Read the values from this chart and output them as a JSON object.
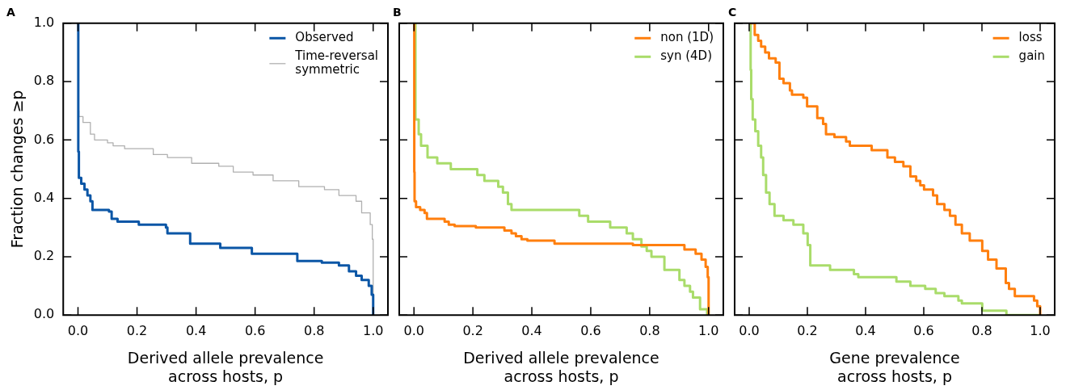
{
  "chart_data": [
    {
      "type": "step",
      "title": "A",
      "xlabel": "Derived allele prevalence\nacross hosts, p",
      "ylabel": "Fraction changes ≥p",
      "legend": "top right",
      "xlim": [
        -0.05,
        1.05
      ],
      "ylim": [
        0,
        1
      ],
      "xticks": [
        {
          "value": 0,
          "label": "0.0"
        },
        {
          "value": 0.2,
          "label": "0.2"
        },
        {
          "value": 0.4,
          "label": "0.4"
        },
        {
          "value": 0.6,
          "label": "0.6"
        },
        {
          "value": 0.8,
          "label": "0.8"
        },
        {
          "value": 1,
          "label": "1.0"
        }
      ],
      "yticks": [
        {
          "value": 0,
          "label": "0.0"
        },
        {
          "value": 0.2,
          "label": "0.2"
        },
        {
          "value": 0.4,
          "label": "0.4"
        },
        {
          "value": 0.6,
          "label": "0.6"
        },
        {
          "value": 0.8,
          "label": "0.8"
        },
        {
          "value": 1,
          "label": "1.0"
        }
      ],
      "series": [
        {
          "name": "Observed",
          "color": "#0b56a6",
          "x": [
            0,
            0.001,
            0.003,
            0.011,
            0.022,
            0.032,
            0.042,
            0.049,
            0.105,
            0.114,
            0.134,
            0.206,
            0.298,
            0.303,
            0.38,
            0.482,
            0.589,
            0.743,
            0.826,
            0.884,
            0.918,
            0.942,
            0.961,
            0.985,
            0.995,
            1.0
          ],
          "values": [
            1,
            0.56,
            0.47,
            0.45,
            0.43,
            0.41,
            0.39,
            0.36,
            0.355,
            0.33,
            0.32,
            0.31,
            0.3,
            0.28,
            0.245,
            0.23,
            0.21,
            0.185,
            0.18,
            0.17,
            0.15,
            0.135,
            0.12,
            0.1,
            0.07,
            0
          ]
        },
        {
          "name": "Time-reversal\nsymmetric",
          "color": "#b0b0b0",
          "x": [
            0,
            0.001,
            0.003,
            0.017,
            0.042,
            0.056,
            0.1,
            0.119,
            0.158,
            0.255,
            0.303,
            0.385,
            0.477,
            0.526,
            0.593,
            0.661,
            0.748,
            0.835,
            0.884,
            0.942,
            0.961,
            0.99,
            0.997,
            1.0
          ],
          "values": [
            1,
            0.7,
            0.68,
            0.66,
            0.62,
            0.6,
            0.59,
            0.58,
            0.57,
            0.55,
            0.54,
            0.52,
            0.51,
            0.49,
            0.48,
            0.46,
            0.44,
            0.43,
            0.41,
            0.39,
            0.35,
            0.31,
            0.26,
            0
          ]
        }
      ]
    },
    {
      "type": "step",
      "title": "B",
      "xlabel": "Derived allele prevalence\nacross hosts, p",
      "legend": "top right",
      "tick_labels": "x",
      "xlim": [
        -0.05,
        1.05
      ],
      "ylim": [
        0,
        1
      ],
      "xticks": [
        {
          "value": 0,
          "label": "0.0"
        },
        {
          "value": 0.2,
          "label": "0.2"
        },
        {
          "value": 0.4,
          "label": "0.4"
        },
        {
          "value": 0.6,
          "label": "0.6"
        },
        {
          "value": 0.8,
          "label": "0.8"
        },
        {
          "value": 1,
          "label": "1.0"
        }
      ],
      "yticks": [
        {
          "value": 0,
          "label": null
        },
        {
          "value": 0.2,
          "label": null
        },
        {
          "value": 0.4,
          "label": null
        },
        {
          "value": 0.6,
          "label": null
        },
        {
          "value": 0.8,
          "label": null
        },
        {
          "value": 1,
          "label": null
        }
      ],
      "series": [
        {
          "name": "non (1D)",
          "color": "#ff7f0e",
          "x": [
            0,
            0.001,
            0.002,
            0.007,
            0.021,
            0.036,
            0.044,
            0.104,
            0.118,
            0.138,
            0.21,
            0.307,
            0.331,
            0.346,
            0.365,
            0.385,
            0.477,
            0.743,
            0.918,
            0.956,
            0.976,
            0.99,
            0.997,
            1.0
          ],
          "values": [
            1,
            0.49,
            0.39,
            0.37,
            0.36,
            0.35,
            0.33,
            0.32,
            0.31,
            0.305,
            0.3,
            0.29,
            0.28,
            0.27,
            0.26,
            0.255,
            0.245,
            0.24,
            0.225,
            0.21,
            0.19,
            0.165,
            0.13,
            0
          ]
        },
        {
          "name": "syn (4D)",
          "color": "#a9dc6a",
          "x": [
            0,
            0.005,
            0.016,
            0.024,
            0.046,
            0.079,
            0.125,
            0.215,
            0.239,
            0.286,
            0.302,
            0.319,
            0.331,
            0.561,
            0.591,
            0.666,
            0.722,
            0.743,
            0.772,
            0.79,
            0.806,
            0.85,
            0.901,
            0.918,
            0.937,
            0.947,
            0.971,
            0.995
          ],
          "values": [
            1,
            0.67,
            0.62,
            0.58,
            0.54,
            0.52,
            0.5,
            0.48,
            0.46,
            0.44,
            0.42,
            0.38,
            0.36,
            0.34,
            0.32,
            0.3,
            0.28,
            0.26,
            0.235,
            0.22,
            0.2,
            0.155,
            0.12,
            0.1,
            0.08,
            0.06,
            0.02,
            0
          ]
        }
      ]
    },
    {
      "type": "step",
      "title": "C",
      "xlabel": "Gene prevalence\nacross hosts, p",
      "legend": "top right",
      "tick_labels": "x",
      "xlim": [
        -0.05,
        1.05
      ],
      "ylim": [
        0,
        1
      ],
      "xticks": [
        {
          "value": 0,
          "label": "0.0"
        },
        {
          "value": 0.2,
          "label": "0.2"
        },
        {
          "value": 0.4,
          "label": "0.4"
        },
        {
          "value": 0.6,
          "label": "0.6"
        },
        {
          "value": 0.8,
          "label": "0.8"
        },
        {
          "value": 1,
          "label": "1.0"
        }
      ],
      "yticks": [
        {
          "value": 0,
          "label": null
        },
        {
          "value": 0.2,
          "label": null
        },
        {
          "value": 0.4,
          "label": null
        },
        {
          "value": 0.6,
          "label": null
        },
        {
          "value": 0.8,
          "label": null
        },
        {
          "value": 1,
          "label": null
        }
      ],
      "series": [
        {
          "name": "loss",
          "color": "#ff7f0e",
          "x": [
            0,
            0.019,
            0.031,
            0.041,
            0.055,
            0.068,
            0.091,
            0.104,
            0.118,
            0.14,
            0.147,
            0.186,
            0.199,
            0.234,
            0.254,
            0.264,
            0.293,
            0.333,
            0.346,
            0.421,
            0.475,
            0.501,
            0.53,
            0.554,
            0.574,
            0.588,
            0.601,
            0.632,
            0.646,
            0.671,
            0.69,
            0.709,
            0.731,
            0.758,
            0.801,
            0.821,
            0.85,
            0.882,
            0.893,
            0.913,
            0.979,
            0.99,
            1.0
          ],
          "values": [
            1,
            0.96,
            0.94,
            0.92,
            0.9,
            0.88,
            0.865,
            0.81,
            0.795,
            0.77,
            0.755,
            0.745,
            0.715,
            0.675,
            0.655,
            0.62,
            0.61,
            0.595,
            0.58,
            0.565,
            0.54,
            0.525,
            0.51,
            0.475,
            0.46,
            0.445,
            0.43,
            0.41,
            0.38,
            0.36,
            0.34,
            0.31,
            0.28,
            0.255,
            0.22,
            0.19,
            0.16,
            0.11,
            0.09,
            0.065,
            0.05,
            0.03,
            0
          ]
        },
        {
          "name": "gain",
          "color": "#a9dc6a",
          "x": [
            0,
            0.005,
            0.007,
            0.012,
            0.021,
            0.031,
            0.041,
            0.048,
            0.058,
            0.07,
            0.087,
            0.118,
            0.152,
            0.186,
            0.201,
            0.21,
            0.278,
            0.36,
            0.375,
            0.506,
            0.554,
            0.605,
            0.641,
            0.671,
            0.719,
            0.731,
            0.801,
            0.884,
            1.0
          ],
          "values": [
            1,
            0.84,
            0.74,
            0.67,
            0.63,
            0.58,
            0.54,
            0.48,
            0.42,
            0.38,
            0.34,
            0.325,
            0.31,
            0.28,
            0.24,
            0.17,
            0.155,
            0.14,
            0.13,
            0.115,
            0.1,
            0.09,
            0.075,
            0.065,
            0.05,
            0.04,
            0.015,
            0,
            0
          ]
        }
      ]
    }
  ]
}
